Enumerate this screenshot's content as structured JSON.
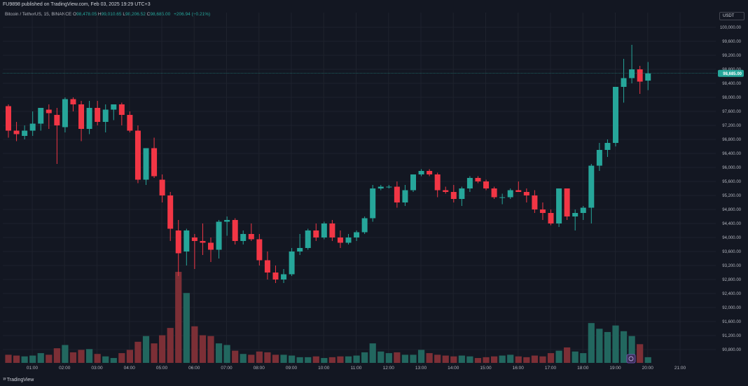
{
  "header": {
    "published": "FU9898 published on TradingView.com, Feb 03, 2025 19:29 UTC+3"
  },
  "legend": {
    "symbol": "Bitcoin / TetherUS, 15, BINANCE",
    "o_label": "O",
    "o": "98,478.05",
    "h_label": "H",
    "h": "99,010.65",
    "l_label": "L",
    "l": "98,206.52",
    "c_label": "C",
    "c": "98,685.00",
    "change": "+206.94 (+0.21%)"
  },
  "currency": "USDT",
  "last_price_label": "98,685.00",
  "footer": {
    "logo": "TradingView"
  },
  "colors": {
    "up": "#26a69a",
    "down": "#f23645",
    "up_vol": "#22675f",
    "down_vol": "#7c2f36",
    "bg": "#131722",
    "grid": "#1e222d"
  },
  "chart_data": {
    "type": "candlestick",
    "interval": "15m",
    "y_range": [
      90400,
      100400
    ],
    "y_ticks": [
      "100,000.00",
      "99,600.00",
      "99,200.00",
      "98,800.00",
      "98,400.00",
      "98,000.00",
      "97,600.00",
      "97,200.00",
      "96,800.00",
      "96,400.00",
      "96,000.00",
      "95,600.00",
      "95,200.00",
      "94,800.00",
      "94,400.00",
      "94,000.00",
      "93,600.00",
      "93,200.00",
      "92,800.00",
      "92,400.00",
      "92,000.00",
      "91,600.00",
      "91,200.00",
      "90,800.00"
    ],
    "x_ticks": [
      "01:00",
      "02:00",
      "03:00",
      "04:00",
      "05:00",
      "06:00",
      "07:00",
      "08:00",
      "09:00",
      "10:00",
      "11:00",
      "12:00",
      "13:00",
      "14:00",
      "15:00",
      "16:00",
      "17:00",
      "18:00",
      "19:00",
      "20:00",
      "21:00"
    ],
    "last_price": 98685,
    "candles": [
      {
        "o": 97750,
        "h": 97800,
        "l": 96850,
        "c": 97050,
        "v": 1.0
      },
      {
        "o": 97050,
        "h": 97300,
        "l": 96750,
        "c": 96950,
        "v": 0.9
      },
      {
        "o": 96900,
        "h": 97200,
        "l": 96800,
        "c": 97050,
        "v": 0.8
      },
      {
        "o": 97050,
        "h": 97600,
        "l": 96900,
        "c": 97250,
        "v": 0.9
      },
      {
        "o": 97250,
        "h": 97700,
        "l": 97050,
        "c": 97700,
        "v": 1.2
      },
      {
        "o": 97650,
        "h": 97800,
        "l": 97100,
        "c": 97550,
        "v": 1.0
      },
      {
        "o": 97500,
        "h": 97700,
        "l": 96100,
        "c": 97200,
        "v": 1.8
      },
      {
        "o": 97150,
        "h": 98000,
        "l": 97000,
        "c": 97950,
        "v": 2.2
      },
      {
        "o": 97950,
        "h": 98000,
        "l": 97600,
        "c": 97800,
        "v": 1.3
      },
      {
        "o": 97800,
        "h": 97900,
        "l": 96750,
        "c": 97100,
        "v": 1.6
      },
      {
        "o": 97100,
        "h": 97900,
        "l": 96950,
        "c": 97700,
        "v": 1.7
      },
      {
        "o": 97700,
        "h": 97900,
        "l": 97200,
        "c": 97300,
        "v": 1.1
      },
      {
        "o": 97300,
        "h": 97800,
        "l": 97000,
        "c": 97650,
        "v": 0.8
      },
      {
        "o": 97650,
        "h": 97800,
        "l": 97350,
        "c": 97800,
        "v": 0.6
      },
      {
        "o": 97800,
        "h": 97850,
        "l": 97200,
        "c": 97500,
        "v": 1.2
      },
      {
        "o": 97500,
        "h": 97600,
        "l": 97000,
        "c": 97050,
        "v": 1.6
      },
      {
        "o": 97050,
        "h": 97200,
        "l": 95550,
        "c": 95650,
        "v": 2.6
      },
      {
        "o": 95650,
        "h": 96500,
        "l": 95500,
        "c": 96550,
        "v": 3.3
      },
      {
        "o": 96550,
        "h": 96850,
        "l": 95700,
        "c": 95750,
        "v": 2.4
      },
      {
        "o": 95650,
        "h": 95800,
        "l": 95000,
        "c": 95200,
        "v": 3.4
      },
      {
        "o": 95200,
        "h": 95300,
        "l": 93900,
        "c": 94250,
        "v": 4.3
      },
      {
        "o": 94200,
        "h": 94500,
        "l": 92900,
        "c": 93550,
        "v": 11.2
      },
      {
        "o": 93600,
        "h": 94250,
        "l": 93200,
        "c": 94200,
        "v": 8.6
      },
      {
        "o": 94000,
        "h": 94100,
        "l": 93100,
        "c": 93900,
        "v": 4.5
      },
      {
        "o": 93900,
        "h": 94400,
        "l": 93500,
        "c": 93850,
        "v": 3.4
      },
      {
        "o": 93850,
        "h": 94000,
        "l": 93300,
        "c": 93650,
        "v": 3.3
      },
      {
        "o": 93650,
        "h": 94500,
        "l": 93400,
        "c": 94450,
        "v": 2.4
      },
      {
        "o": 94450,
        "h": 94600,
        "l": 94050,
        "c": 94500,
        "v": 2.2
      },
      {
        "o": 94500,
        "h": 94550,
        "l": 93800,
        "c": 93900,
        "v": 1.5
      },
      {
        "o": 93900,
        "h": 94200,
        "l": 93800,
        "c": 94100,
        "v": 1.1
      },
      {
        "o": 94100,
        "h": 94400,
        "l": 93900,
        "c": 93950,
        "v": 1.0
      },
      {
        "o": 93950,
        "h": 94100,
        "l": 93200,
        "c": 93350,
        "v": 1.4
      },
      {
        "o": 93350,
        "h": 93600,
        "l": 92800,
        "c": 93000,
        "v": 1.3
      },
      {
        "o": 93000,
        "h": 93200,
        "l": 92700,
        "c": 92800,
        "v": 1.0
      },
      {
        "o": 92800,
        "h": 93100,
        "l": 92700,
        "c": 92950,
        "v": 1.0
      },
      {
        "o": 92950,
        "h": 93700,
        "l": 92900,
        "c": 93600,
        "v": 0.9
      },
      {
        "o": 93600,
        "h": 94100,
        "l": 93500,
        "c": 93700,
        "v": 0.7
      },
      {
        "o": 93700,
        "h": 94250,
        "l": 93650,
        "c": 94200,
        "v": 0.7
      },
      {
        "o": 94200,
        "h": 94400,
        "l": 93900,
        "c": 94000,
        "v": 0.8
      },
      {
        "o": 94000,
        "h": 94450,
        "l": 93950,
        "c": 94400,
        "v": 0.6
      },
      {
        "o": 94400,
        "h": 94500,
        "l": 93900,
        "c": 94000,
        "v": 0.7
      },
      {
        "o": 94000,
        "h": 94200,
        "l": 93700,
        "c": 93850,
        "v": 0.8
      },
      {
        "o": 93850,
        "h": 94100,
        "l": 93800,
        "c": 94000,
        "v": 0.8
      },
      {
        "o": 94000,
        "h": 94200,
        "l": 93900,
        "c": 94150,
        "v": 0.9
      },
      {
        "o": 94150,
        "h": 94600,
        "l": 94100,
        "c": 94550,
        "v": 1.3
      },
      {
        "o": 94550,
        "h": 95500,
        "l": 94450,
        "c": 95400,
        "v": 2.4
      },
      {
        "o": 95400,
        "h": 95500,
        "l": 95350,
        "c": 95450,
        "v": 1.4
      },
      {
        "o": 95450,
        "h": 95500,
        "l": 95400,
        "c": 95450,
        "v": 1.2
      },
      {
        "o": 95450,
        "h": 95600,
        "l": 94850,
        "c": 95000,
        "v": 1.3
      },
      {
        "o": 95000,
        "h": 95500,
        "l": 94900,
        "c": 95350,
        "v": 1.0
      },
      {
        "o": 95350,
        "h": 95800,
        "l": 95300,
        "c": 95800,
        "v": 1.0
      },
      {
        "o": 95800,
        "h": 95950,
        "l": 95750,
        "c": 95900,
        "v": 1.6
      },
      {
        "o": 95900,
        "h": 95950,
        "l": 95750,
        "c": 95800,
        "v": 1.2
      },
      {
        "o": 95800,
        "h": 95850,
        "l": 95150,
        "c": 95350,
        "v": 1.0
      },
      {
        "o": 95350,
        "h": 95450,
        "l": 95250,
        "c": 95300,
        "v": 0.9
      },
      {
        "o": 95300,
        "h": 95500,
        "l": 95000,
        "c": 95100,
        "v": 0.8
      },
      {
        "o": 95100,
        "h": 95450,
        "l": 94900,
        "c": 95400,
        "v": 0.9
      },
      {
        "o": 95400,
        "h": 95750,
        "l": 95300,
        "c": 95700,
        "v": 0.8
      },
      {
        "o": 95700,
        "h": 95750,
        "l": 95550,
        "c": 95600,
        "v": 0.6
      },
      {
        "o": 95600,
        "h": 95650,
        "l": 95350,
        "c": 95400,
        "v": 0.7
      },
      {
        "o": 95400,
        "h": 95450,
        "l": 95100,
        "c": 95150,
        "v": 0.8
      },
      {
        "o": 95150,
        "h": 95250,
        "l": 94950,
        "c": 95150,
        "v": 0.9
      },
      {
        "o": 95150,
        "h": 95400,
        "l": 95100,
        "c": 95350,
        "v": 1.0
      },
      {
        "o": 95350,
        "h": 95600,
        "l": 95300,
        "c": 95300,
        "v": 0.8
      },
      {
        "o": 95300,
        "h": 95400,
        "l": 95000,
        "c": 95200,
        "v": 0.7
      },
      {
        "o": 95200,
        "h": 95350,
        "l": 94700,
        "c": 94800,
        "v": 0.9
      },
      {
        "o": 94800,
        "h": 95000,
        "l": 94500,
        "c": 94700,
        "v": 0.8
      },
      {
        "o": 94700,
        "h": 94800,
        "l": 94350,
        "c": 94400,
        "v": 1.2
      },
      {
        "o": 94400,
        "h": 95400,
        "l": 94300,
        "c": 95400,
        "v": 1.5
      },
      {
        "o": 95400,
        "h": 95400,
        "l": 94500,
        "c": 94600,
        "v": 1.9
      },
      {
        "o": 94600,
        "h": 94800,
        "l": 94200,
        "c": 94700,
        "v": 1.4
      },
      {
        "o": 94700,
        "h": 94900,
        "l": 94500,
        "c": 94850,
        "v": 1.2
      },
      {
        "o": 94850,
        "h": 96100,
        "l": 94400,
        "c": 96050,
        "v": 4.9
      },
      {
        "o": 96050,
        "h": 96700,
        "l": 95900,
        "c": 96500,
        "v": 4.2
      },
      {
        "o": 96500,
        "h": 96800,
        "l": 96300,
        "c": 96700,
        "v": 3.8
      },
      {
        "o": 96700,
        "h": 98300,
        "l": 96600,
        "c": 98300,
        "v": 4.6
      },
      {
        "o": 98300,
        "h": 99100,
        "l": 97850,
        "c": 98550,
        "v": 3.9
      },
      {
        "o": 98550,
        "h": 99500,
        "l": 98400,
        "c": 98800,
        "v": 3.3
      },
      {
        "o": 98800,
        "h": 98900,
        "l": 98100,
        "c": 98450,
        "v": 2.3
      },
      {
        "o": 98478,
        "h": 99010,
        "l": 98206,
        "c": 98685,
        "v": 0.7
      }
    ]
  }
}
